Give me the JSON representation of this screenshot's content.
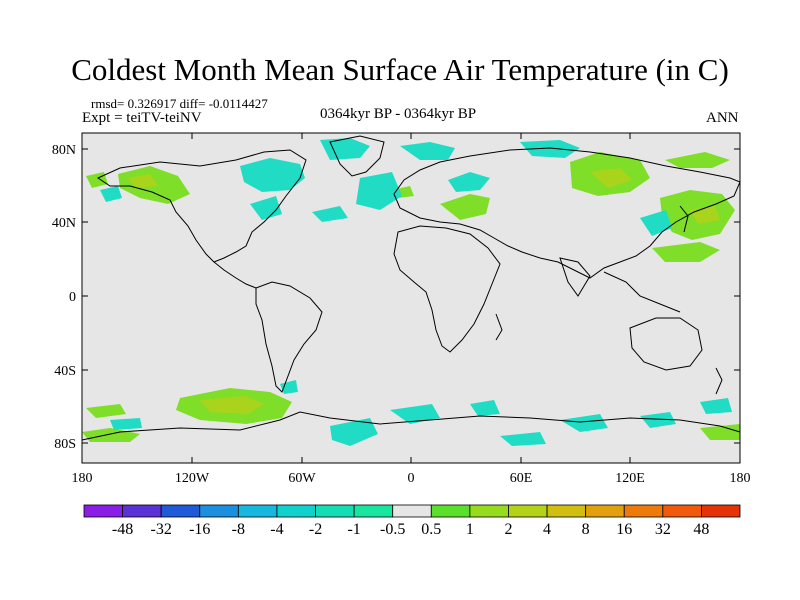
{
  "title": "Coldest Month Mean Surface Air Temperature (in C)",
  "stats": "rmsd= 0.326917  diff= -0.0114427",
  "experiment": "Expt = teiTV-teiNV",
  "period": "0364kyr BP - 0364kyr BP",
  "season": "ANN",
  "lat_ticks": [
    "80N",
    "40N",
    "0",
    "40S",
    "80S"
  ],
  "lon_ticks": [
    "180",
    "120W",
    "60W",
    "0",
    "60E",
    "120E",
    "180"
  ],
  "colorbar": {
    "labels": [
      "-48",
      "-32",
      "-16",
      "-8",
      "-4",
      "-2",
      "-1",
      "-0.5",
      "0.5",
      "1",
      "2",
      "4",
      "8",
      "16",
      "32",
      "48"
    ],
    "colors": [
      "#8a1ee6",
      "#5a32d6",
      "#1f5ad8",
      "#1c8fe0",
      "#16b8e0",
      "#10d2cc",
      "#12ddb4",
      "#18e6a0",
      "#e6e6e6",
      "#5ae02a",
      "#96dc1c",
      "#b4d218",
      "#d2be0e",
      "#e2a00c",
      "#ee7a0a",
      "#f05a0a",
      "#e63208"
    ]
  },
  "colors": {
    "background": "#e6e6e6",
    "warm_anomaly": "#7ede28",
    "warm_strong": "#aad41c",
    "cool_anomaly": "#20dcc4",
    "cool_strong": "#18c4d8"
  }
}
